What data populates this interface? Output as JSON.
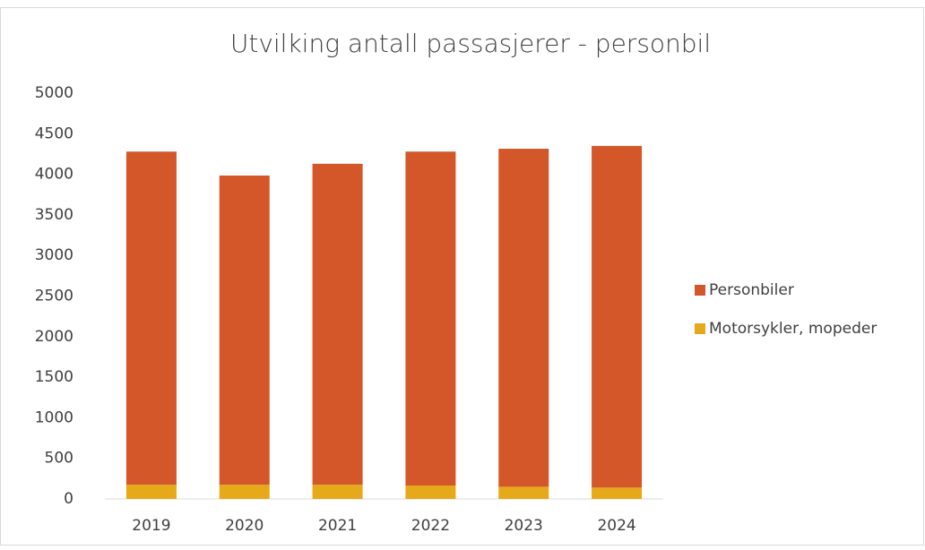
{
  "chart_data": {
    "type": "stacked_bar",
    "title": "Utvilking antall passasjerer - personbil",
    "categories": [
      "2019",
      "2020",
      "2021",
      "2022",
      "2023",
      "2024"
    ],
    "series": [
      {
        "name": "Motorsykler, mopeder",
        "color": "#e5a91a",
        "values": [
          175,
          175,
          175,
          165,
          150,
          140
        ]
      },
      {
        "name": "Personbiler",
        "color": "#d4572a",
        "values": [
          4105,
          3810,
          3955,
          4115,
          4165,
          4210
        ]
      }
    ],
    "ylim": [
      0,
      5000
    ],
    "yticks": [
      0,
      500,
      1000,
      1500,
      2000,
      2500,
      3000,
      3500,
      4000,
      4500,
      5000
    ],
    "grid": false,
    "legend": "right"
  }
}
